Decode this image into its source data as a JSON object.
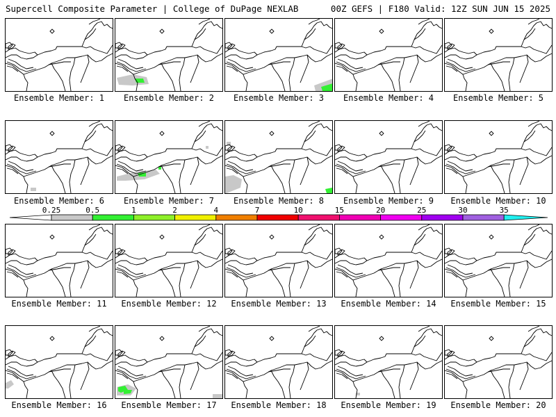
{
  "header": {
    "left": "Supercell Composite Parameter | College of DuPage NEXLAB",
    "right": "00Z GEFS | F180 Valid: 12Z SUN JUN 15 2025"
  },
  "members": [
    {
      "label": "Ensemble Member: 1",
      "blobs": []
    },
    {
      "label": "Ensemble Member: 2",
      "blobs": [
        {
          "level": "0.25",
          "pts": [
            [
              2,
              85
            ],
            [
              25,
              80
            ],
            [
              45,
              84
            ],
            [
              48,
              94
            ],
            [
              25,
              96
            ],
            [
              5,
              95
            ]
          ]
        },
        {
          "level": "0.5",
          "pts": [
            [
              28,
              86
            ],
            [
              40,
              86
            ],
            [
              42,
              92
            ],
            [
              30,
              92
            ]
          ]
        }
      ]
    },
    {
      "label": "Ensemble Member: 3",
      "blobs": [
        {
          "level": "0.25",
          "pts": [
            [
              128,
              96
            ],
            [
              155,
              86
            ],
            [
              155,
              104
            ],
            [
              130,
              104
            ]
          ]
        },
        {
          "level": "0.5",
          "pts": [
            [
              138,
              98
            ],
            [
              155,
              93
            ],
            [
              155,
              104
            ],
            [
              140,
              104
            ]
          ]
        }
      ]
    },
    {
      "label": "Ensemble Member: 4",
      "blobs": []
    },
    {
      "label": "Ensemble Member: 5",
      "blobs": []
    },
    {
      "label": "Ensemble Member: 6",
      "blobs": [
        {
          "level": "0.25",
          "pts": [
            [
              36,
              96
            ],
            [
              44,
              96
            ],
            [
              44,
              101
            ],
            [
              36,
              101
            ]
          ]
        }
      ]
    },
    {
      "label": "Ensemble Member: 7",
      "blobs": [
        {
          "level": "0.25",
          "pts": [
            [
              2,
              80
            ],
            [
              30,
              73
            ],
            [
              58,
              70
            ],
            [
              64,
              76
            ],
            [
              42,
              84
            ],
            [
              15,
              86
            ],
            [
              2,
              86
            ]
          ]
        },
        {
          "level": "0.5",
          "pts": [
            [
              32,
              75
            ],
            [
              44,
              74
            ],
            [
              44,
              80
            ],
            [
              34,
              80
            ]
          ]
        },
        {
          "level": "0.5",
          "pts": [
            [
              62,
              66
            ],
            [
              66,
              66
            ],
            [
              66,
              70
            ],
            [
              62,
              70
            ]
          ]
        },
        {
          "level": "0.25",
          "pts": [
            [
              130,
              36
            ],
            [
              134,
              36
            ],
            [
              134,
              40
            ],
            [
              130,
              40
            ]
          ]
        }
      ]
    },
    {
      "label": "Ensemble Member: 8",
      "blobs": [
        {
          "level": "0.25",
          "pts": [
            [
              0,
              80
            ],
            [
              12,
              78
            ],
            [
              24,
              84
            ],
            [
              22,
              96
            ],
            [
              2,
              104
            ],
            [
              0,
              104
            ]
          ]
        },
        {
          "level": "0.5",
          "pts": [
            [
              144,
              98
            ],
            [
              154,
              96
            ],
            [
              154,
              104
            ],
            [
              146,
              104
            ]
          ]
        },
        {
          "level": "0.25",
          "pts": [
            [
              2,
              30
            ],
            [
              8,
              30
            ],
            [
              8,
              36
            ],
            [
              2,
              36
            ]
          ]
        }
      ]
    },
    {
      "label": "Ensemble Member: 9",
      "blobs": []
    },
    {
      "label": "Ensemble Member: 10",
      "blobs": []
    },
    {
      "label": "Ensemble Member: 11",
      "blobs": []
    },
    {
      "label": "Ensemble Member: 12",
      "blobs": []
    },
    {
      "label": "Ensemble Member: 13",
      "blobs": []
    },
    {
      "label": "Ensemble Member: 14",
      "blobs": []
    },
    {
      "label": "Ensemble Member: 15",
      "blobs": []
    },
    {
      "label": "Ensemble Member: 16",
      "blobs": [
        {
          "level": "0.25",
          "pts": [
            [
              0,
              82
            ],
            [
              8,
              78
            ],
            [
              12,
              84
            ],
            [
              4,
              90
            ],
            [
              0,
              90
            ]
          ]
        }
      ]
    },
    {
      "label": "Ensemble Member: 17",
      "blobs": [
        {
          "level": "0.25",
          "pts": [
            [
              2,
              88
            ],
            [
              18,
              84
            ],
            [
              30,
              90
            ],
            [
              22,
              100
            ],
            [
              2,
              100
            ]
          ]
        },
        {
          "level": "0.5",
          "pts": [
            [
              4,
              88
            ],
            [
              14,
              86
            ],
            [
              18,
              92
            ],
            [
              8,
              96
            ],
            [
              4,
              94
            ]
          ]
        },
        {
          "level": "0.5",
          "pts": [
            [
              12,
              92
            ],
            [
              24,
              92
            ],
            [
              22,
              97
            ],
            [
              12,
              98
            ]
          ]
        },
        {
          "level": "0.25",
          "pts": [
            [
              140,
              98
            ],
            [
              154,
              98
            ],
            [
              154,
              104
            ],
            [
              140,
              104
            ]
          ]
        }
      ]
    },
    {
      "label": "Ensemble Member: 18",
      "blobs": []
    },
    {
      "label": "Ensemble Member: 19",
      "blobs": [
        {
          "level": "0.25",
          "pts": [
            [
              30,
              96
            ],
            [
              36,
              96
            ],
            [
              36,
              100
            ],
            [
              30,
              100
            ]
          ]
        }
      ]
    },
    {
      "label": "Ensemble Member: 20",
      "blobs": []
    }
  ],
  "legend": {
    "levels": [
      "0.25",
      "0.5",
      "1",
      "2",
      "4",
      "7",
      "10",
      "15",
      "20",
      "25",
      "30",
      "35"
    ],
    "colors": [
      "#c8c8c8",
      "#33f033",
      "#8ef029",
      "#f0f000",
      "#f07f00",
      "#f00000",
      "#f0106e",
      "#f000b4",
      "#f000f0",
      "#a000f0",
      "#a060e0",
      "#20f0f0"
    ],
    "arrow_color": "#ffffff"
  }
}
